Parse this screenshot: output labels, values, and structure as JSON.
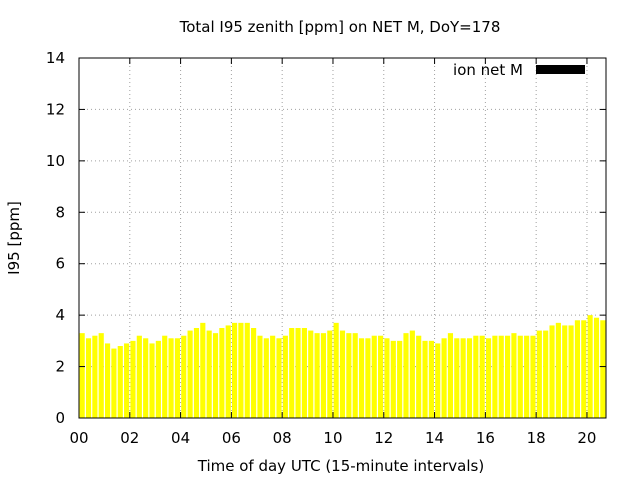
{
  "chart_data": {
    "type": "bar",
    "title": "Total I95 zenith [ppm] on NET M, DoY=178",
    "xlabel": "Time of day UTC (15-minute intervals)",
    "ylabel": "I95 [ppm]",
    "xlim": [
      0,
      20.75
    ],
    "ylim": [
      0,
      14
    ],
    "x_ticks": [
      "00",
      "02",
      "04",
      "06",
      "08",
      "10",
      "12",
      "14",
      "16",
      "18",
      "20"
    ],
    "y_ticks": [
      "0",
      "2",
      "4",
      "6",
      "8",
      "10",
      "12",
      "14"
    ],
    "grid": true,
    "legend_position": "top-right",
    "bar_color": "#ffff00",
    "series": [
      {
        "name": "ion net M",
        "legend_color": "#000000",
        "interval_hours": 0.25,
        "values": [
          3.3,
          3.1,
          3.2,
          3.3,
          2.9,
          2.7,
          2.8,
          2.9,
          3.0,
          3.2,
          3.1,
          2.9,
          3.0,
          3.2,
          3.1,
          3.1,
          3.2,
          3.4,
          3.5,
          3.7,
          3.4,
          3.3,
          3.5,
          3.6,
          3.7,
          3.7,
          3.7,
          3.5,
          3.2,
          3.1,
          3.2,
          3.1,
          3.2,
          3.5,
          3.5,
          3.5,
          3.4,
          3.3,
          3.3,
          3.4,
          3.7,
          3.4,
          3.3,
          3.3,
          3.1,
          3.1,
          3.2,
          3.2,
          3.1,
          3.0,
          3.0,
          3.3,
          3.4,
          3.2,
          3.0,
          3.0,
          2.9,
          3.1,
          3.3,
          3.1,
          3.1,
          3.1,
          3.2,
          3.2,
          3.1,
          3.2,
          3.2,
          3.2,
          3.3,
          3.2,
          3.2,
          3.2,
          3.4,
          3.4,
          3.6,
          3.7,
          3.6,
          3.6,
          3.8,
          3.8,
          4.0,
          3.9,
          3.8,
          4.0
        ]
      }
    ]
  }
}
